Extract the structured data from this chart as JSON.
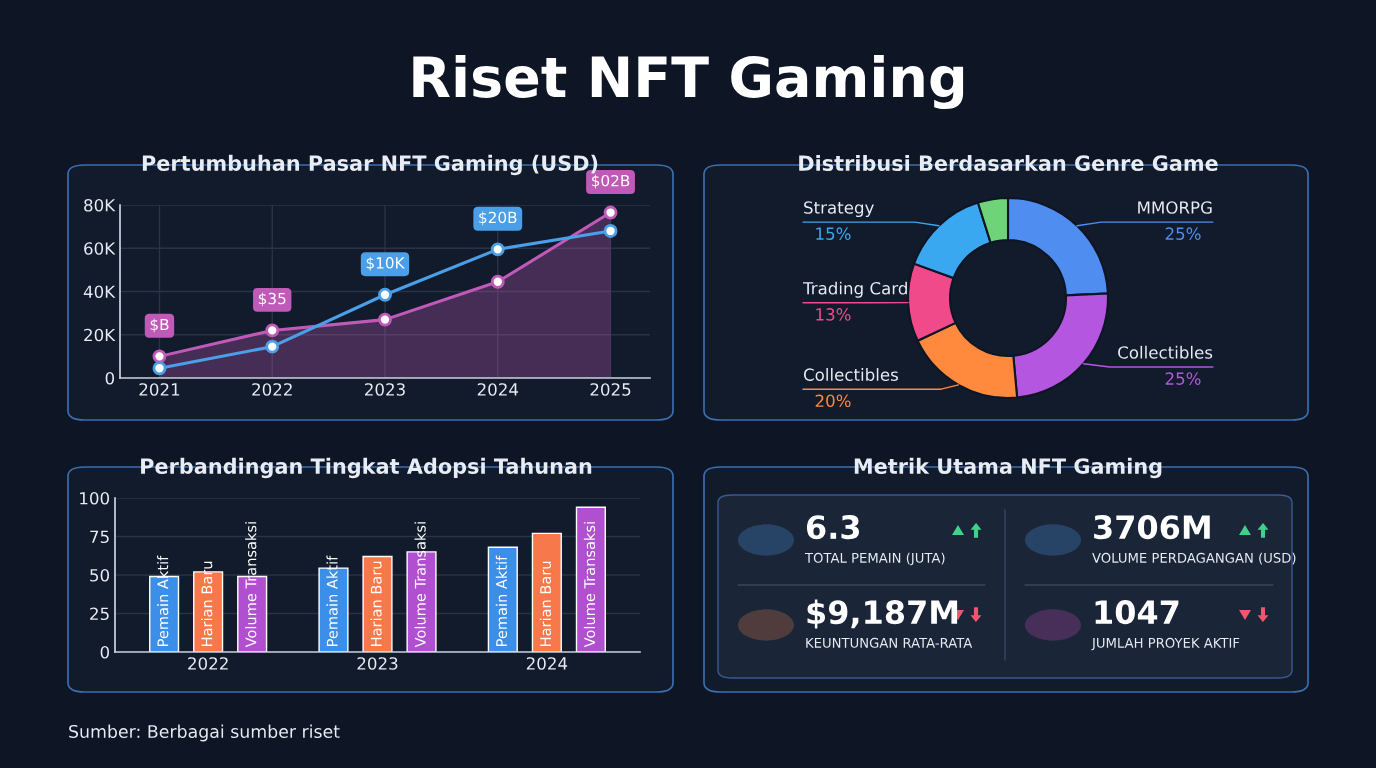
{
  "chart_data": [
    {
      "type": "other",
      "title": "Riset NFT Gaming",
      "annotations": [
        "Sumber: Berbagai sumber riset"
      ]
    },
    {
      "type": "line",
      "title": "Pertumbuhan Pasar NFT Gaming (USD)",
      "categories": [
        "2021",
        "2022",
        "2023",
        "2024",
        "2025"
      ],
      "series": [
        {
          "type": "area",
          "color": "#c05ab8",
          "values": [
            10000,
            22000,
            27000,
            44500,
            76500
          ]
        },
        {
          "type": "line",
          "color": "#4a9fe8",
          "values": [
            4500,
            14500,
            38500,
            59500,
            68000
          ]
        }
      ],
      "ylim": [
        0,
        80000
      ],
      "yticks": [
        0,
        {
          "value": 20000,
          "label": "20K"
        },
        {
          "value": 40000,
          "label": "40K"
        },
        {
          "value": 60000,
          "label": "60K"
        },
        {
          "value": 80000,
          "label": "80K"
        }
      ],
      "grid": true,
      "marker": "circle",
      "legend": false,
      "annotations": [
        {
          "text": "$B",
          "x": "2021",
          "y": 10000
        },
        {
          "text": "$35",
          "x": "2022",
          "y": 22000
        },
        {
          "text": "$10K",
          "x": "2023",
          "y": 38500
        },
        {
          "text": "$20B",
          "x": "2024",
          "y": 59500
        },
        {
          "text": "$02B",
          "x": "2025",
          "y": 76500
        }
      ]
    },
    {
      "type": "donut",
      "title": "Distribusi Berdasarkan Genre Game",
      "categories": [
        "MMORPG",
        "Collectibles",
        "Collectibles",
        "Trading Card",
        "Strategy",
        null
      ],
      "values": [
        25,
        25,
        20,
        13,
        15,
        5
      ],
      "value_labels": [
        "25%",
        "25%",
        "20%",
        "13%",
        "15%",
        null
      ],
      "colors": [
        "#4f8df0",
        "#b456e0",
        "#ff8a3d",
        "#f04a8a",
        "#3aa8f0",
        "#6fd37a"
      ]
    },
    {
      "type": "bar",
      "title": "Perbandingan Tingkat Adopsi Tahunan",
      "categories": [
        "2022",
        "2023",
        "2024"
      ],
      "series": [
        {
          "name": "Pemain Aktif",
          "color": "#3b8fe8",
          "values": [
            49,
            54.5,
            68
          ]
        },
        {
          "name": "Harian Baru",
          "color": "#f7784a",
          "values": [
            52,
            62,
            77
          ]
        },
        {
          "name": "Volume Transaksi",
          "color": "#b04fd0",
          "values": [
            49,
            65,
            94
          ]
        }
      ],
      "ylim": [
        0,
        100
      ],
      "yticks": [
        0,
        25,
        50,
        75,
        100
      ],
      "grid": "y",
      "legend": false
    },
    {
      "type": "other",
      "title": "Metrik Utama NFT Gaming",
      "annotations": [
        "6.3",
        "TOTAL PEMAIN (JUTA)",
        "3706M",
        "VOLUME PERDAGANGAN (USD)",
        "$9,187M",
        "KEUNTUNGAN RATA-RATA",
        "1047",
        "JUMLAH PROYEK AKTIF"
      ]
    }
  ]
}
